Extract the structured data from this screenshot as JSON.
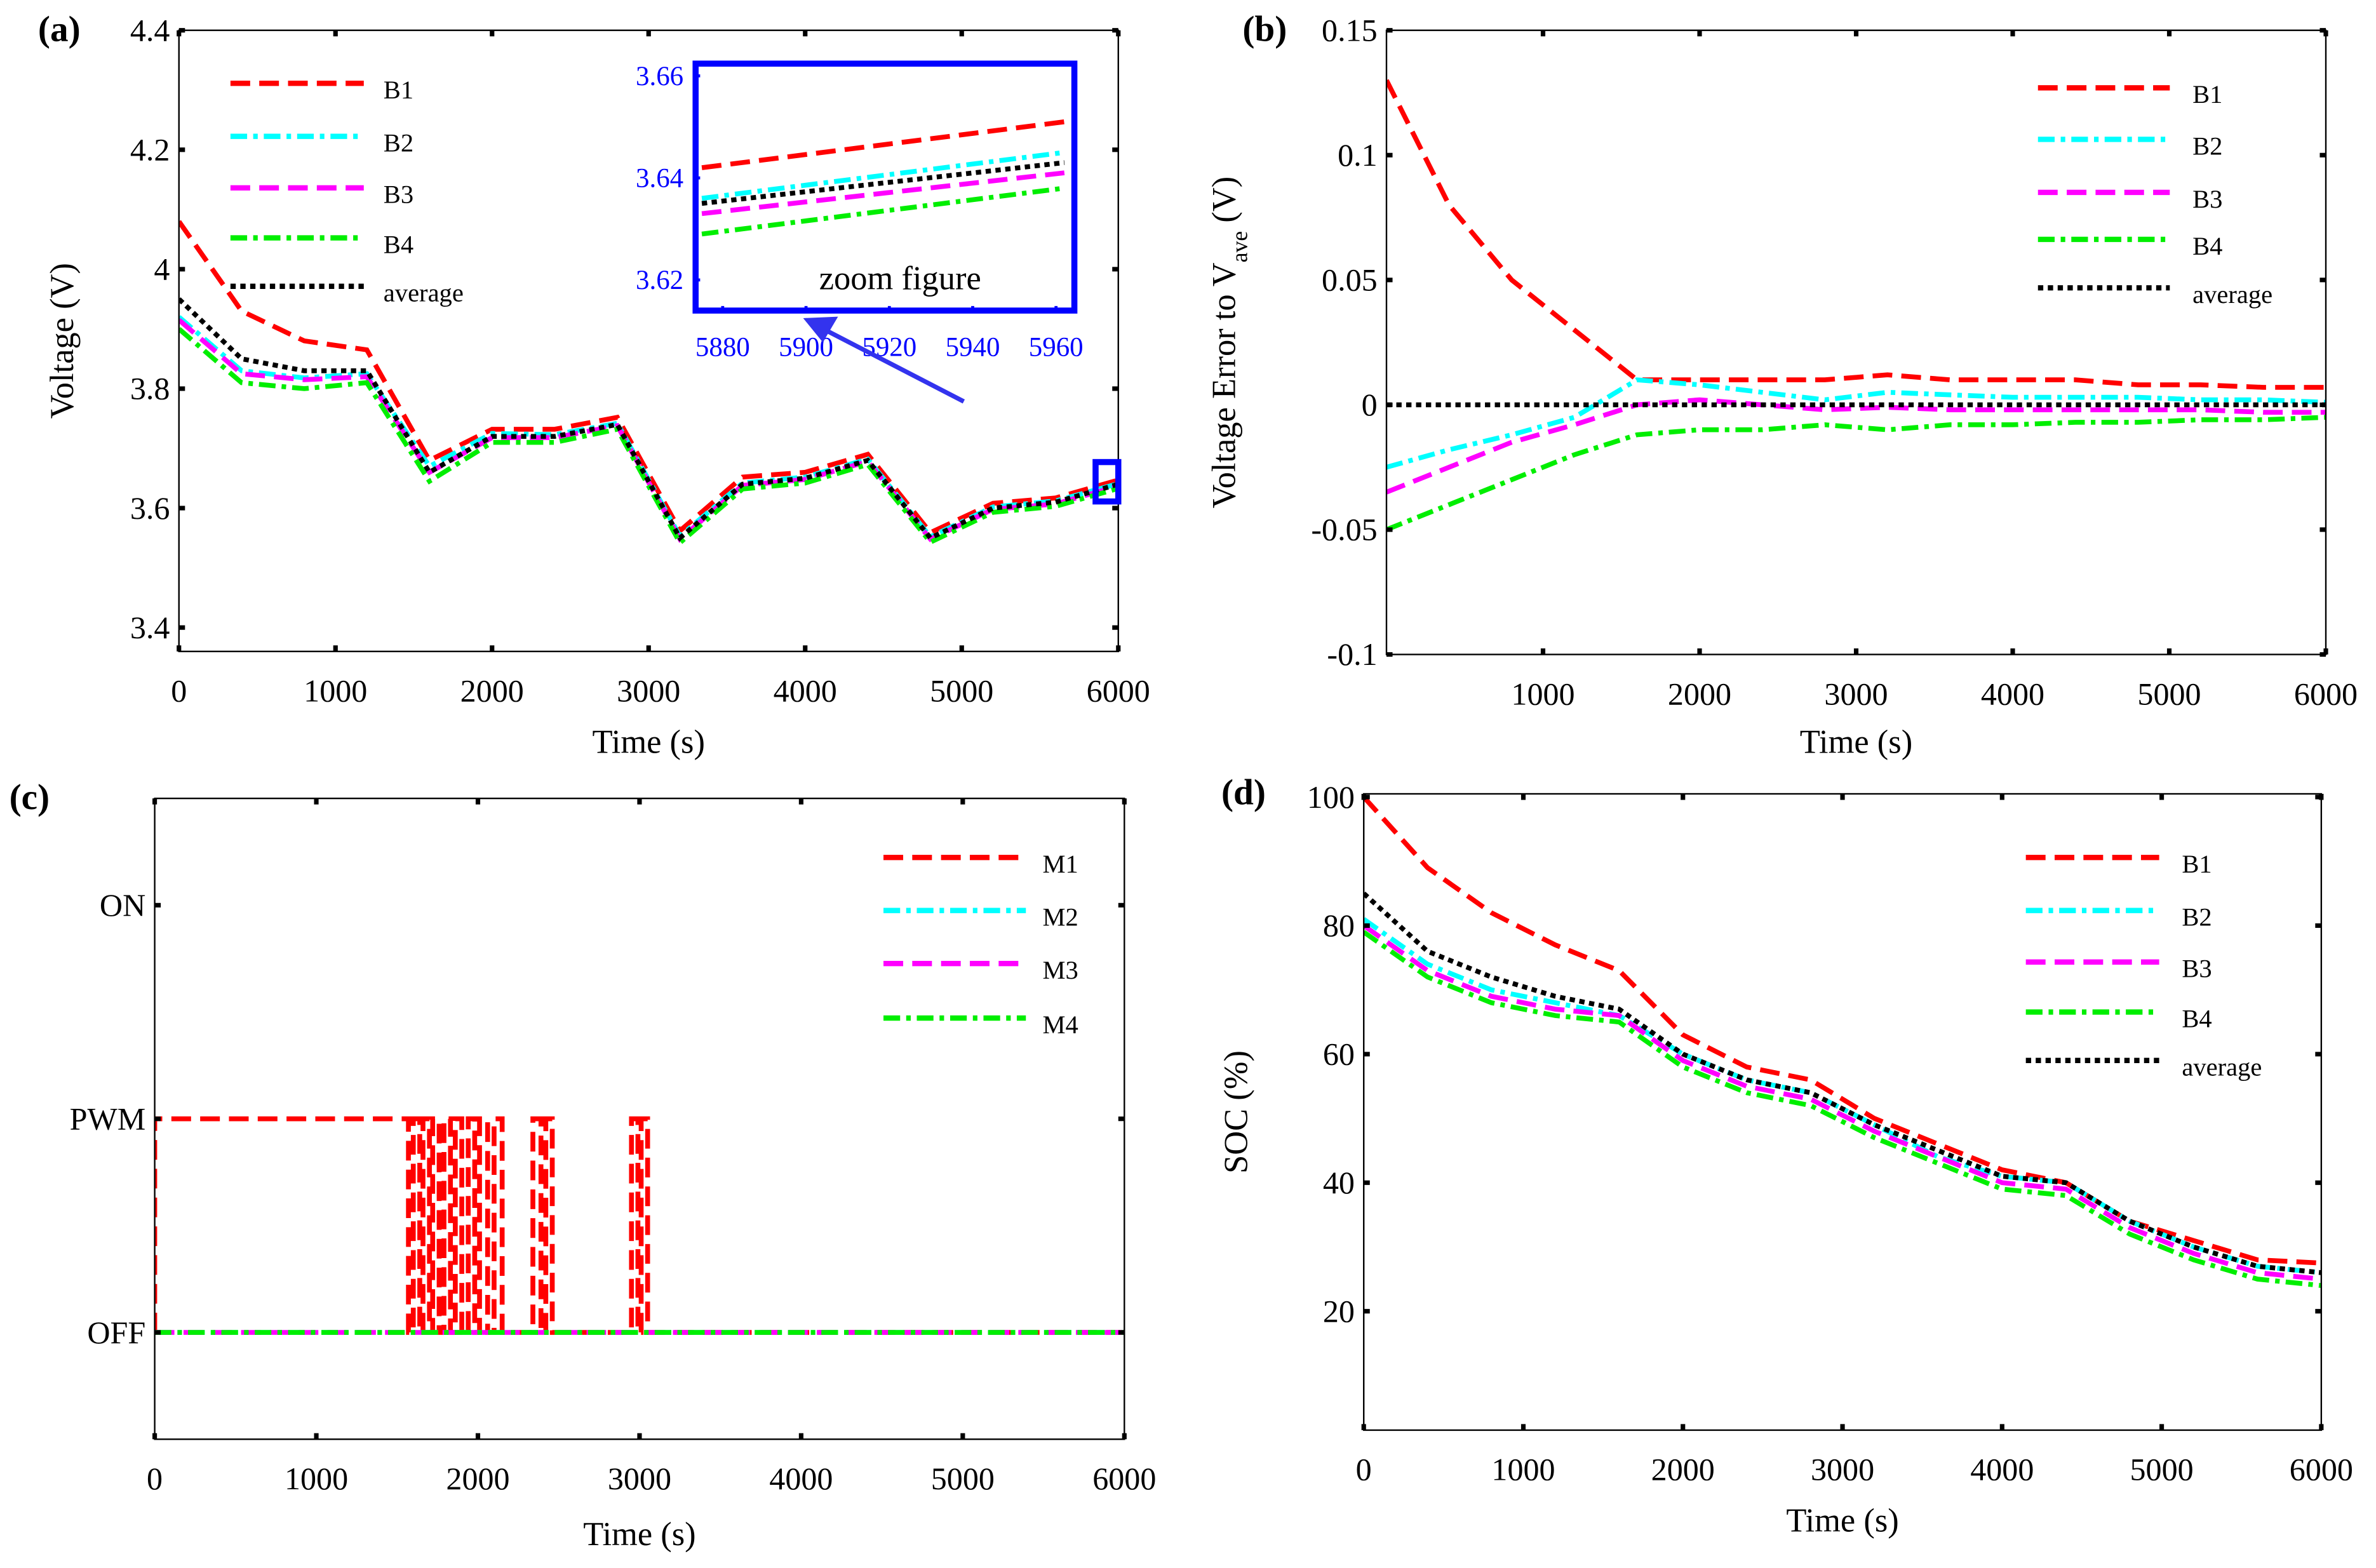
{
  "chart_data": [
    {
      "id": "a",
      "type": "line",
      "panel_label": "(a)",
      "xlabel": "Time (s)",
      "ylabel": "Voltage (V)",
      "xlim": [
        0,
        6000
      ],
      "ylim": [
        3.36,
        4.4
      ],
      "xticks": [
        0,
        1000,
        2000,
        3000,
        4000,
        5000,
        6000
      ],
      "yticks": [
        3.4,
        3.6,
        3.8,
        4,
        4.2,
        4.4
      ],
      "ytick_labels": [
        "3.4",
        "3.6",
        "3.8",
        "4",
        "4.2",
        "4.4"
      ],
      "x": [
        0,
        400,
        800,
        1200,
        1600,
        2000,
        2400,
        2800,
        3200,
        3600,
        4000,
        4400,
        4800,
        5200,
        5600,
        6000
      ],
      "series": [
        {
          "name": "B1",
          "color": "#ff0000",
          "style": "dashed",
          "values": [
            4.08,
            3.93,
            3.88,
            3.865,
            3.68,
            3.732,
            3.732,
            3.752,
            3.562,
            3.652,
            3.66,
            3.69,
            3.559,
            3.608,
            3.617,
            3.647
          ]
        },
        {
          "name": "B2",
          "color": "#00ffff",
          "style": "dashdot",
          "values": [
            3.92,
            3.83,
            3.818,
            3.825,
            3.67,
            3.725,
            3.723,
            3.742,
            3.553,
            3.642,
            3.652,
            3.682,
            3.552,
            3.602,
            3.612,
            3.641
          ]
        },
        {
          "name": "B3",
          "color": "#ff00ff",
          "style": "dashed",
          "values": [
            3.915,
            3.825,
            3.815,
            3.82,
            3.66,
            3.718,
            3.718,
            3.738,
            3.548,
            3.638,
            3.648,
            3.678,
            3.548,
            3.598,
            3.607,
            3.637
          ]
        },
        {
          "name": "B4",
          "color": "#00ee00",
          "style": "dashdot",
          "values": [
            3.9,
            3.81,
            3.8,
            3.81,
            3.645,
            3.71,
            3.71,
            3.732,
            3.542,
            3.632,
            3.642,
            3.673,
            3.543,
            3.593,
            3.603,
            3.633
          ]
        },
        {
          "name": "average",
          "color": "#000000",
          "style": "dotted",
          "values": [
            3.95,
            3.85,
            3.83,
            3.83,
            3.66,
            3.72,
            3.72,
            3.74,
            3.55,
            3.64,
            3.65,
            3.68,
            3.55,
            3.6,
            3.61,
            3.64
          ]
        }
      ],
      "inset": {
        "title": "zoom figure",
        "color": "#0000ff",
        "xlim": [
          5873.5,
          5964.4
        ],
        "ylim": [
          3.614,
          3.6624
        ],
        "xticks": [
          5880,
          5900,
          5920,
          5940,
          5960
        ],
        "yticks": [
          3.62,
          3.64,
          3.66
        ],
        "x": [
          5875,
          5962
        ],
        "series": [
          {
            "name": "B1",
            "values": [
              3.642,
              3.651
            ]
          },
          {
            "name": "B2",
            "values": [
              3.636,
              3.645
            ]
          },
          {
            "name": "average",
            "values": [
              3.635,
              3.643
            ]
          },
          {
            "name": "B3",
            "values": [
              3.633,
              3.641
            ]
          },
          {
            "name": "B4",
            "values": [
              3.629,
              3.638
            ]
          }
        ]
      }
    },
    {
      "id": "b",
      "type": "line",
      "panel_label": "(b)",
      "xlabel": "Time (s)",
      "ylabel_main": "Voltage Error to V",
      "ylabel_sub": "ave",
      "ylabel_unit": " (V)",
      "xlim": [
        0,
        6000
      ],
      "ylim": [
        -0.1,
        0.15
      ],
      "xticks": [
        1000,
        2000,
        3000,
        4000,
        5000,
        6000
      ],
      "yticks": [
        -0.1,
        -0.05,
        0,
        0.05,
        0.1,
        0.15
      ],
      "ytick_labels": [
        "-0.1",
        "-0.05",
        "0",
        "0.05",
        "0.1",
        "0.15"
      ],
      "x": [
        0,
        400,
        800,
        1200,
        1600,
        2000,
        2400,
        2800,
        3200,
        3600,
        4000,
        4400,
        4800,
        5200,
        5600,
        6000
      ],
      "series": [
        {
          "name": "B1",
          "color": "#ff0000",
          "style": "dashed",
          "values": [
            0.13,
            0.08,
            0.05,
            0.03,
            0.01,
            0.01,
            0.01,
            0.01,
            0.012,
            0.01,
            0.01,
            0.01,
            0.008,
            0.008,
            0.007,
            0.007
          ]
        },
        {
          "name": "B2",
          "color": "#00ffff",
          "style": "dashdot",
          "values": [
            -0.025,
            -0.018,
            -0.012,
            -0.005,
            0.01,
            0.008,
            0.005,
            0.002,
            0.005,
            0.004,
            0.003,
            0.003,
            0.003,
            0.002,
            0.002,
            0.001
          ]
        },
        {
          "name": "B3",
          "color": "#ff00ff",
          "style": "dashed",
          "values": [
            -0.035,
            -0.025,
            -0.015,
            -0.008,
            0.0,
            0.002,
            0.0,
            -0.002,
            -0.001,
            -0.002,
            -0.002,
            -0.002,
            -0.002,
            -0.002,
            -0.003,
            -0.003
          ]
        },
        {
          "name": "B4",
          "color": "#00ee00",
          "style": "dashdot",
          "values": [
            -0.05,
            -0.04,
            -0.03,
            -0.02,
            -0.012,
            -0.01,
            -0.01,
            -0.008,
            -0.01,
            -0.008,
            -0.008,
            -0.007,
            -0.007,
            -0.006,
            -0.006,
            -0.005
          ]
        },
        {
          "name": "average",
          "color": "#000000",
          "style": "dotted",
          "values": [
            0,
            0,
            0,
            0,
            0,
            0,
            0,
            0,
            0,
            0,
            0,
            0,
            0,
            0,
            0,
            0
          ]
        }
      ]
    },
    {
      "id": "c",
      "type": "line",
      "panel_label": "(c)",
      "xlabel": "Time (s)",
      "ylabel": "",
      "xlim": [
        0,
        6000
      ],
      "ylim": [
        -0.5,
        2.5
      ],
      "xticks": [
        0,
        1000,
        2000,
        3000,
        4000,
        5000,
        6000
      ],
      "yticks": [
        0,
        1,
        2
      ],
      "ytick_labels": [
        "OFF",
        "PWM",
        "ON"
      ],
      "series": [
        {
          "name": "M1",
          "color": "#ff0000",
          "style": "dashed",
          "pwm_intervals": [
            [
              0,
              1570
            ],
            [
              1600,
              1640
            ],
            [
              1660,
              1700
            ],
            [
              1720,
              1760
            ],
            [
              1790,
              1830
            ],
            [
              1860,
              1900
            ],
            [
              1940,
              1980
            ],
            [
              2010,
              2060
            ],
            [
              2100,
              2150
            ],
            [
              2340,
              2390
            ],
            [
              2420,
              2460
            ],
            [
              2950,
              2990
            ],
            [
              3010,
              3050
            ]
          ]
        },
        {
          "name": "M2",
          "color": "#00ffff",
          "style": "dashdot",
          "pwm_intervals": []
        },
        {
          "name": "M3",
          "color": "#ff00ff",
          "style": "dashed",
          "pwm_intervals": []
        },
        {
          "name": "M4",
          "color": "#00ee00",
          "style": "dashdot",
          "pwm_intervals": []
        }
      ]
    },
    {
      "id": "d",
      "type": "line",
      "panel_label": "(d)",
      "xlabel": "Time (s)",
      "ylabel": "SOC (%)",
      "xlim": [
        0,
        6000
      ],
      "ylim": [
        1.5,
        100.5
      ],
      "xticks": [
        0,
        1000,
        2000,
        3000,
        4000,
        5000,
        6000
      ],
      "yticks": [
        20,
        40,
        60,
        80,
        100
      ],
      "ytick_labels": [
        "20",
        "40",
        "60",
        "80",
        "100"
      ],
      "x": [
        0,
        400,
        800,
        1200,
        1600,
        2000,
        2400,
        2800,
        3200,
        3600,
        4000,
        4400,
        4800,
        5200,
        5600,
        6000
      ],
      "series": [
        {
          "name": "B1",
          "color": "#ff0000",
          "style": "dashed",
          "values": [
            100,
            89,
            82,
            77,
            73,
            63,
            58,
            56,
            50,
            46,
            42,
            40,
            34,
            31,
            28,
            27.5
          ]
        },
        {
          "name": "B2",
          "color": "#00ffff",
          "style": "dashdot",
          "values": [
            81,
            74,
            70,
            68,
            66,
            60,
            56,
            54,
            49,
            44,
            41,
            40,
            34,
            30,
            27,
            26
          ]
        },
        {
          "name": "B3",
          "color": "#ff00ff",
          "style": "dashed",
          "values": [
            80,
            73,
            69,
            67,
            66,
            59,
            55,
            53,
            48,
            44,
            40,
            39,
            33,
            29,
            26,
            25
          ]
        },
        {
          "name": "B4",
          "color": "#00ee00",
          "style": "dashdot",
          "values": [
            79,
            72,
            68,
            66,
            65,
            58,
            54,
            52,
            47,
            43,
            39,
            38,
            32,
            28,
            25,
            24
          ]
        },
        {
          "name": "average",
          "color": "#000000",
          "style": "dotted",
          "values": [
            85,
            76,
            72,
            69,
            67,
            60,
            56,
            54,
            49,
            45,
            41,
            40,
            34,
            30,
            27,
            26
          ]
        }
      ]
    }
  ]
}
